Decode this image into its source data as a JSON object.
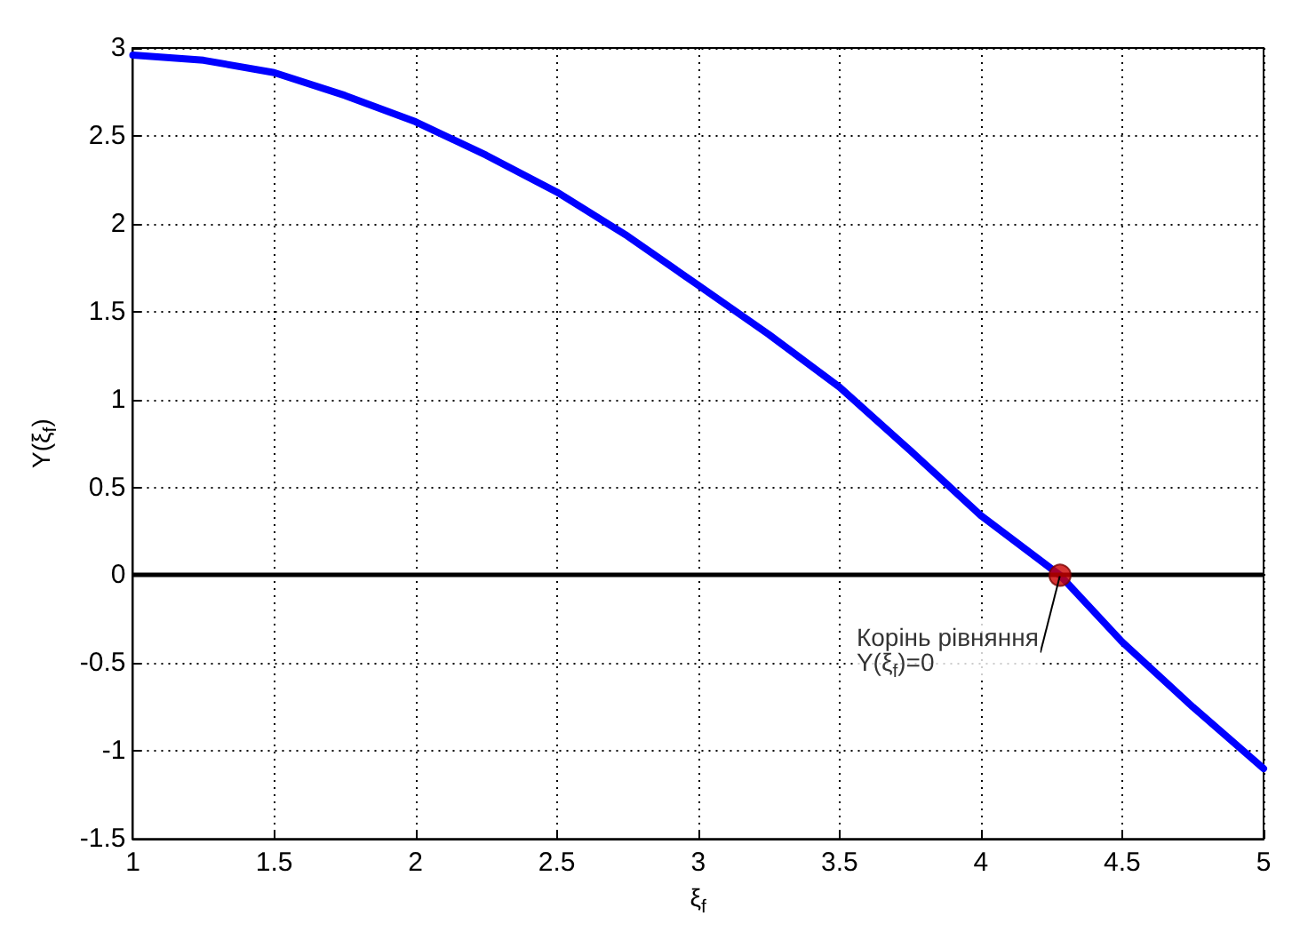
{
  "chart_data": {
    "type": "line",
    "xlabel": "ξ$_{f}$",
    "ylabel": "Y(ξ$_{f}$)",
    "series": [
      {
        "color": "#0000ff",
        "marker": "none",
        "x": [
          1,
          1.25,
          1.5,
          1.75,
          2,
          2.25,
          2.5,
          2.75,
          3,
          3.25,
          3.5,
          3.75,
          4,
          4.28,
          4.5,
          4.75,
          5
        ],
        "values": [
          2.96,
          2.93,
          2.86,
          2.73,
          2.58,
          2.39,
          2.18,
          1.93,
          1.65,
          1.37,
          1.07,
          0.71,
          0.34,
          0,
          -0.38,
          -0.75,
          -1.1
        ]
      },
      {
        "type": "scatter",
        "marker": "circle",
        "color": "#cc0000",
        "x": [
          4.28
        ],
        "values": [
          0
        ]
      }
    ],
    "ref_lines": [
      {
        "axis": "y",
        "value": 0,
        "color": "#000000",
        "line_style": "solid"
      }
    ],
    "annotations": [
      {
        "text": "Корінь рівняння\nY(ξ$_{f}$)=0",
        "x": 4.28,
        "y": 0
      }
    ],
    "xlim": [
      1,
      5
    ],
    "xticks": [
      1,
      1.5,
      2,
      2.5,
      3,
      3.5,
      4,
      4.5,
      5
    ],
    "ylim": [
      -1.5,
      3
    ],
    "yticks": [
      -1.5,
      -1,
      -0.5,
      0,
      0.5,
      1,
      1.5,
      2,
      2.5,
      3
    ],
    "grid": true,
    "line_style": "solid"
  }
}
